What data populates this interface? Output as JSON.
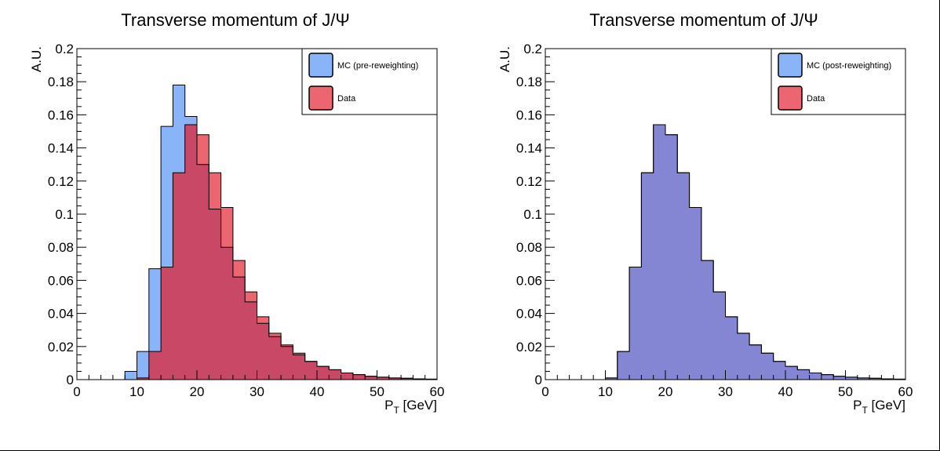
{
  "chart_data": [
    {
      "type": "histogram",
      "title": "Transverse momentum of J/Ψ",
      "xlabel": "P",
      "xlabel_sub": "T",
      "xlabel_unit": " [GeV]",
      "ylabel": "A.U.",
      "xlim": [
        0,
        60
      ],
      "ylim": [
        0,
        0.2
      ],
      "x_ticks": [
        "0",
        "10",
        "20",
        "30",
        "40",
        "50",
        "60"
      ],
      "y_ticks": [
        "0",
        "0.02",
        "0.04",
        "0.06",
        "0.08",
        "0.1",
        "0.12",
        "0.14",
        "0.16",
        "0.18",
        "0.2"
      ],
      "bin_edges": [
        0,
        2,
        4,
        6,
        8,
        10,
        12,
        14,
        16,
        18,
        20,
        22,
        24,
        26,
        28,
        30,
        32,
        34,
        36,
        38,
        40,
        42,
        44,
        46,
        48,
        50,
        52,
        54,
        56,
        58,
        60
      ],
      "legend_position": "top-right",
      "series": [
        {
          "name": "MC (pre-reweighting)",
          "color": "#8ab4f8",
          "values": [
            0,
            0,
            0,
            0,
            0.005,
            0.017,
            0.067,
            0.153,
            0.178,
            0.159,
            0.13,
            0.103,
            0.08,
            0.062,
            0.047,
            0.034,
            0.026,
            0.02,
            0.015,
            0.011,
            0.008,
            0.006,
            0.004,
            0.003,
            0.002,
            0.0015,
            0.001,
            0.0008,
            0.0005,
            0.0003
          ]
        },
        {
          "name": "Data",
          "color": "#ec6671",
          "values": [
            0,
            0,
            0,
            0,
            0,
            0.001,
            0.017,
            0.068,
            0.125,
            0.154,
            0.148,
            0.125,
            0.104,
            0.072,
            0.053,
            0.038,
            0.028,
            0.021,
            0.016,
            0.011,
            0.008,
            0.006,
            0.004,
            0.003,
            0.002,
            0.0015,
            0.001,
            0.0008,
            0.0005,
            0.0003
          ]
        }
      ],
      "overlap_color": "#c94866"
    },
    {
      "type": "histogram",
      "title": "Transverse momentum of J/Ψ",
      "xlabel": "P",
      "xlabel_sub": "T",
      "xlabel_unit": " [GeV]",
      "ylabel": "A.U.",
      "xlim": [
        0,
        60
      ],
      "ylim": [
        0,
        0.2
      ],
      "x_ticks": [
        "0",
        "10",
        "20",
        "30",
        "40",
        "50",
        "60"
      ],
      "y_ticks": [
        "0",
        "0.02",
        "0.04",
        "0.06",
        "0.08",
        "0.1",
        "0.12",
        "0.14",
        "0.16",
        "0.18",
        "0.2"
      ],
      "bin_edges": [
        0,
        2,
        4,
        6,
        8,
        10,
        12,
        14,
        16,
        18,
        20,
        22,
        24,
        26,
        28,
        30,
        32,
        34,
        36,
        38,
        40,
        42,
        44,
        46,
        48,
        50,
        52,
        54,
        56,
        58,
        60
      ],
      "legend_position": "top-right",
      "series": [
        {
          "name": "MC (post-reweighting)",
          "color": "#8ab4f8",
          "values": [
            0,
            0,
            0,
            0,
            0,
            0.001,
            0.017,
            0.068,
            0.125,
            0.154,
            0.148,
            0.125,
            0.104,
            0.072,
            0.053,
            0.038,
            0.028,
            0.021,
            0.016,
            0.011,
            0.008,
            0.006,
            0.004,
            0.003,
            0.002,
            0.0015,
            0.001,
            0.0008,
            0.0005,
            0.0003
          ]
        },
        {
          "name": "Data",
          "color": "#ec6671",
          "values": [
            0,
            0,
            0,
            0,
            0,
            0.001,
            0.017,
            0.068,
            0.125,
            0.154,
            0.148,
            0.125,
            0.104,
            0.072,
            0.053,
            0.038,
            0.028,
            0.021,
            0.016,
            0.011,
            0.008,
            0.006,
            0.004,
            0.003,
            0.002,
            0.0015,
            0.001,
            0.0008,
            0.0005,
            0.0003
          ]
        }
      ],
      "overlap_color": "#8486d4"
    }
  ]
}
